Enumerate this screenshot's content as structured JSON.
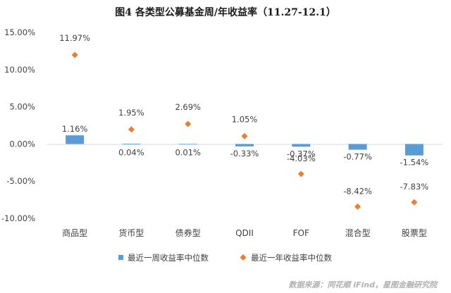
{
  "chart_data": {
    "type": "bar",
    "title": "图4  各类型公募基金周/年收益率（11.27-12.1）",
    "categories": [
      "商品型",
      "货币型",
      "债券型",
      "QDII",
      "FOF",
      "混合型",
      "股票型"
    ],
    "series": [
      {
        "name": "最近一周收益率中位数",
        "kind": "bar",
        "color": "#5b9bd5",
        "values": [
          1.16,
          0.04,
          0.01,
          -0.33,
          -0.37,
          -0.77,
          -1.54
        ],
        "labels": [
          "1.16%",
          "0.04%",
          "0.01%",
          "-0.33%",
          "-0.37%",
          "-0.77%",
          "-1.54%"
        ]
      },
      {
        "name": "最近一年收益率中位数",
        "kind": "scatter",
        "marker": "diamond",
        "color": "#ed7d31",
        "values": [
          11.97,
          1.95,
          2.69,
          1.05,
          -4.03,
          -8.42,
          -7.83
        ],
        "labels": [
          "11.97%",
          "1.95%",
          "2.69%",
          "1.05%",
          "-4.03%",
          "-8.42%",
          "-7.83%"
        ]
      }
    ],
    "yticks": [
      "15.00%",
      "10.00%",
      "5.00%",
      "0.00%",
      "-5.00%",
      "-10.00%"
    ],
    "ylim": [
      -10,
      15
    ],
    "grid": false,
    "legend": "bottom"
  },
  "source": "数据来源：同花顺 iFind，星图金融研究院"
}
